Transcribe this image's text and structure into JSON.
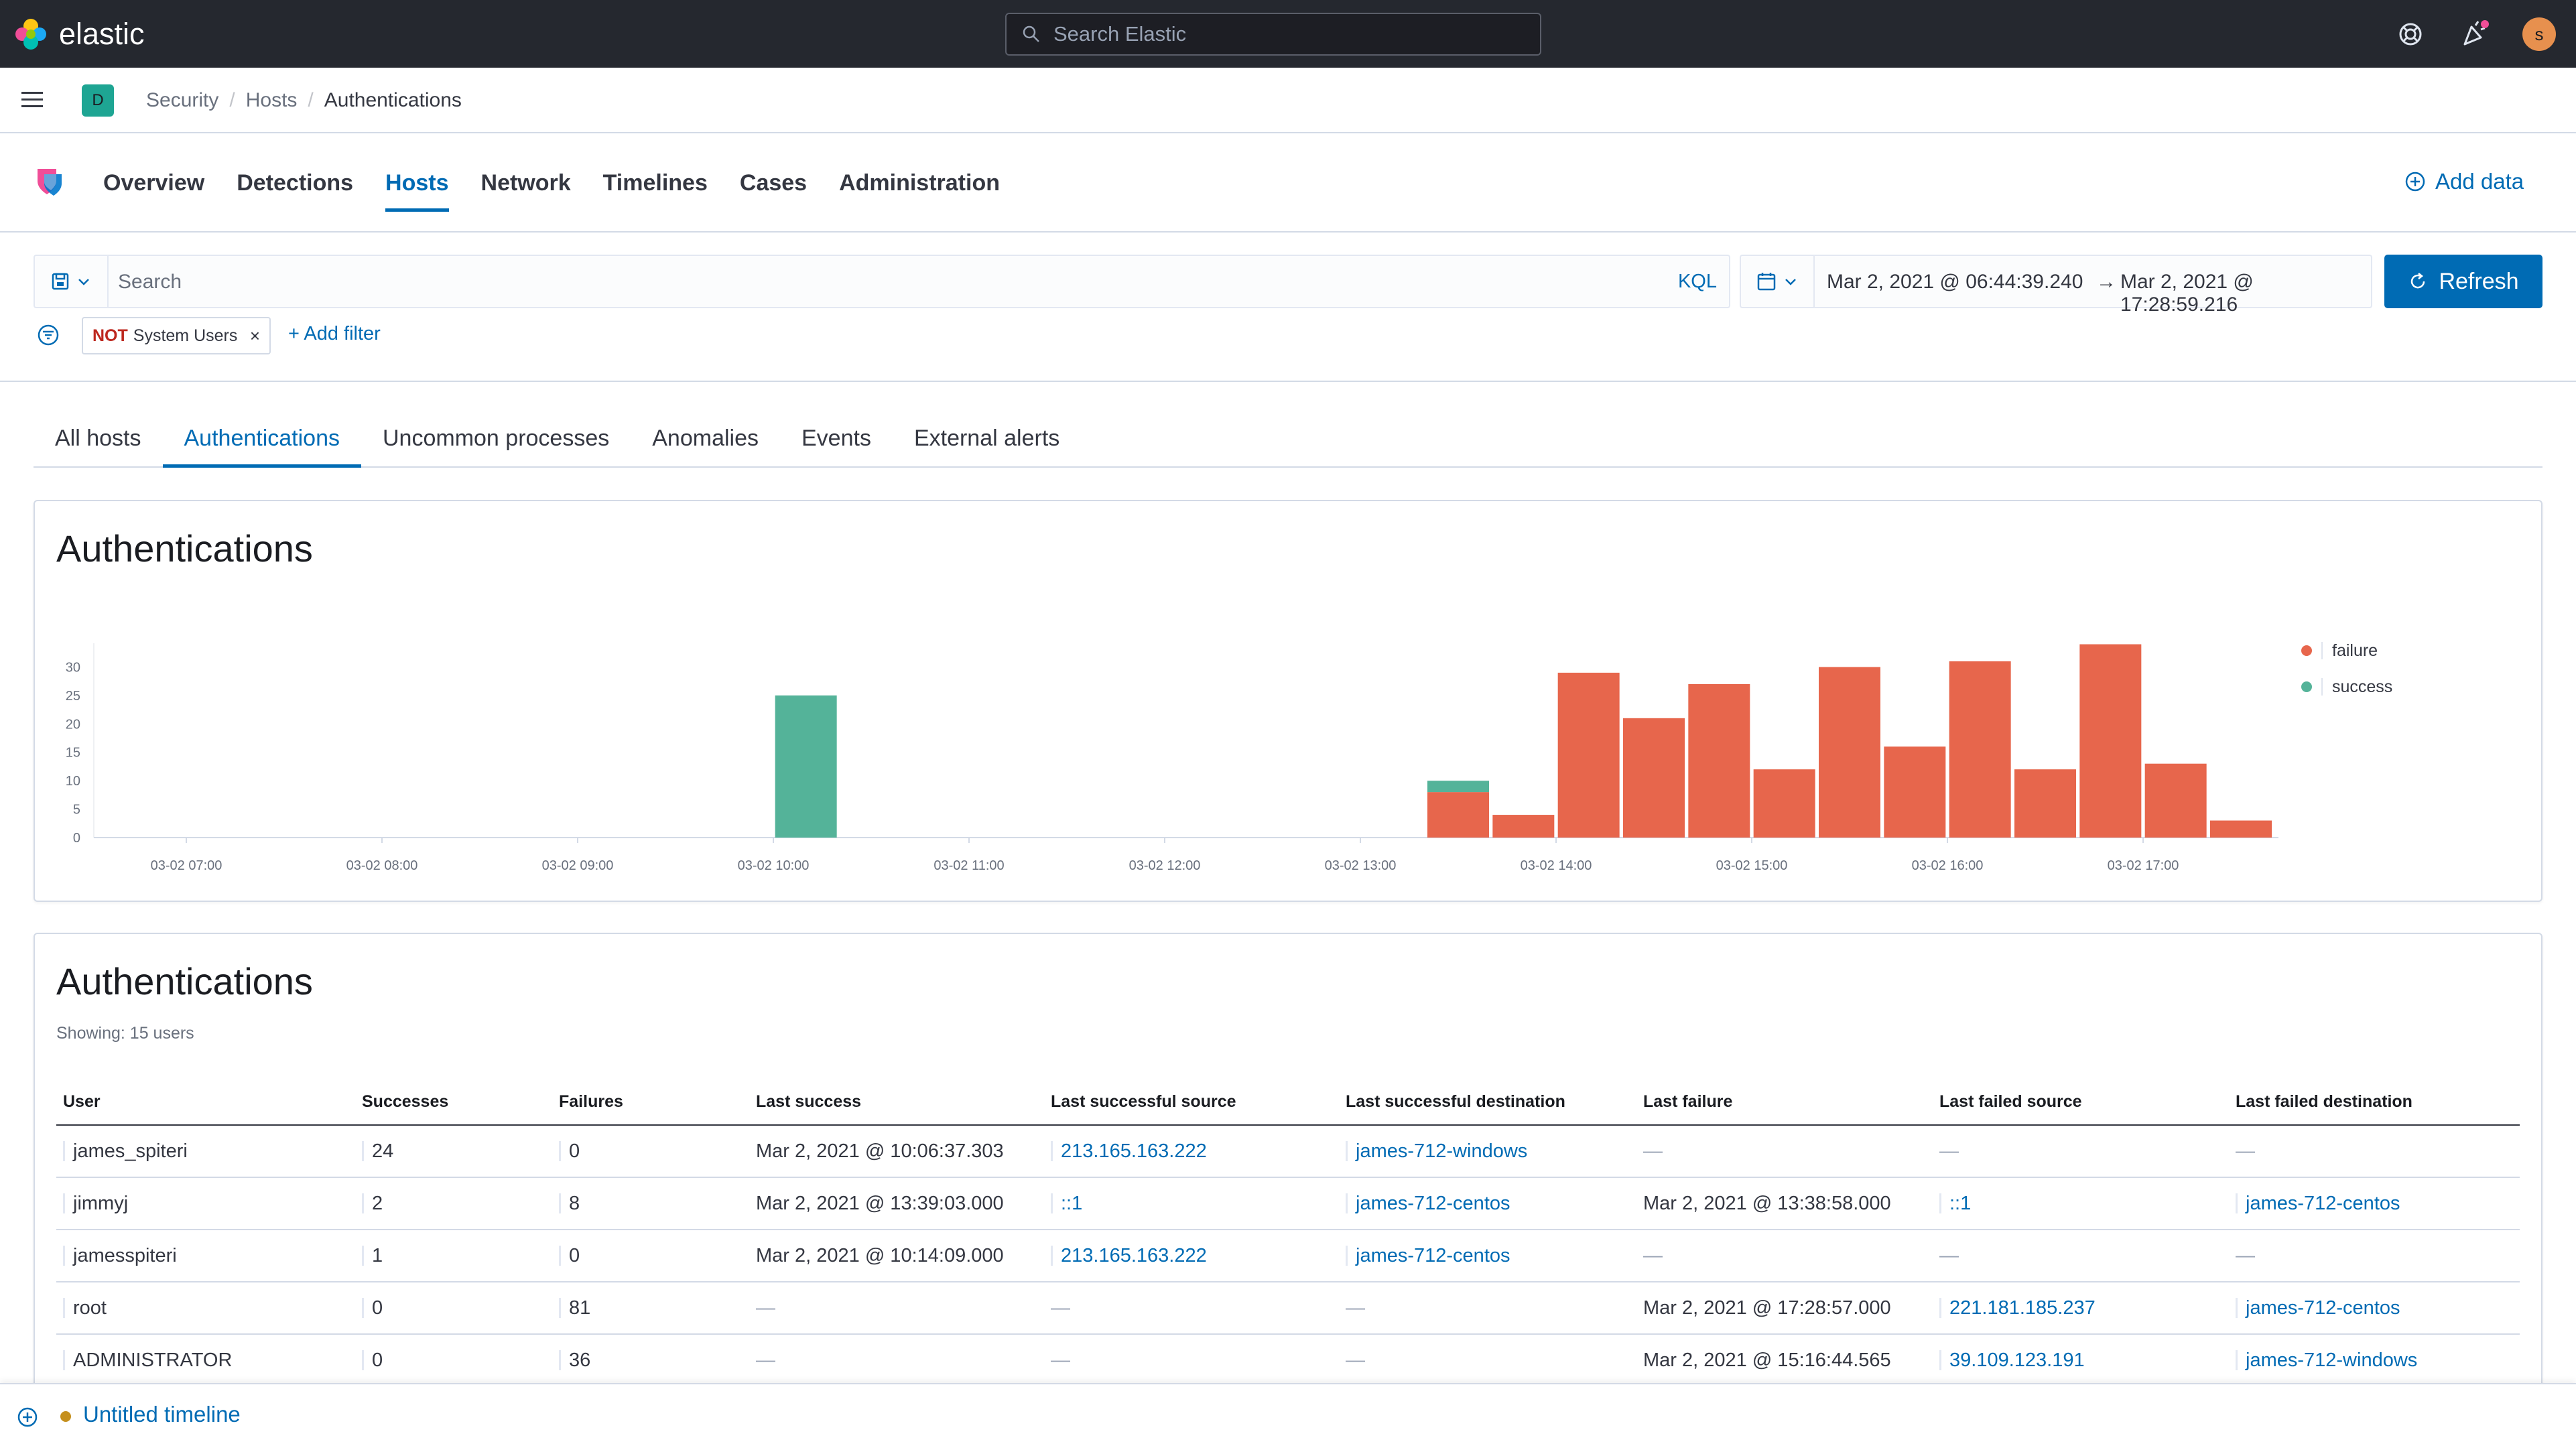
{
  "topbar": {
    "brand": "elastic",
    "search_placeholder": "Search Elastic",
    "avatar_initial": "s"
  },
  "breadcrumb": {
    "space_initial": "D",
    "items": [
      "Security",
      "Hosts",
      "Authentications"
    ]
  },
  "nav": {
    "tabs": [
      "Overview",
      "Detections",
      "Hosts",
      "Network",
      "Timelines",
      "Cases",
      "Administration"
    ],
    "active": "Hosts",
    "add_data": "Add data"
  },
  "query": {
    "placeholder": "Search",
    "language": "KQL",
    "start": "Mar 2, 2021 @ 06:44:39.240",
    "arrow": "→",
    "end": "Mar 2, 2021 @ 17:28:59.216",
    "refresh": "Refresh"
  },
  "filters": {
    "pill_not": "NOT",
    "pill_label": "System Users",
    "pill_close": "×",
    "add_filter": "+ Add filter"
  },
  "subtabs": {
    "items": [
      "All hosts",
      "Authentications",
      "Uncommon processes",
      "Anomalies",
      "Events",
      "External alerts"
    ],
    "active": "Authentications"
  },
  "colors": {
    "failure": "#e7664c",
    "success": "#54b399",
    "link": "#006bb4"
  },
  "chart_panel": {
    "title": "Authentications"
  },
  "chart_data": {
    "type": "bar",
    "stacked": true,
    "legend_position": "top-right",
    "ylim": [
      0,
      33
    ],
    "y_ticks": [
      0,
      5,
      10,
      15,
      20,
      25,
      30
    ],
    "x_tick_labels": [
      "03-02 07:00",
      "03-02 08:00",
      "03-02 09:00",
      "03-02 10:00",
      "03-02 11:00",
      "03-02 12:00",
      "03-02 13:00",
      "03-02 14:00",
      "03-02 15:00",
      "03-02 16:00",
      "03-02 17:00"
    ],
    "series": [
      {
        "name": "failure",
        "points": [
          [
            "03-02 13:30",
            8
          ],
          [
            "03-02 13:50",
            4
          ],
          [
            "03-02 14:10",
            29
          ],
          [
            "03-02 14:30",
            21
          ],
          [
            "03-02 14:50",
            27
          ],
          [
            "03-02 15:10",
            12
          ],
          [
            "03-02 15:30",
            30
          ],
          [
            "03-02 15:50",
            16
          ],
          [
            "03-02 16:10",
            31
          ],
          [
            "03-02 16:30",
            12
          ],
          [
            "03-02 16:50",
            34
          ],
          [
            "03-02 17:10",
            13
          ],
          [
            "03-02 17:30",
            3
          ]
        ]
      },
      {
        "name": "success",
        "points": [
          [
            "03-02 10:10",
            25
          ],
          [
            "03-02 13:30",
            2
          ]
        ]
      }
    ]
  },
  "table_panel": {
    "title": "Authentications",
    "showing": "Showing: 15 users",
    "columns": [
      "User",
      "Successes",
      "Failures",
      "Last success",
      "Last successful source",
      "Last successful destination",
      "Last failure",
      "Last failed source",
      "Last failed destination"
    ],
    "rows": [
      [
        "james_spiteri",
        "24",
        "0",
        "Mar 2, 2021 @ 10:06:37.303",
        "213.165.163.222",
        "james-712-windows",
        "—",
        "—",
        "—"
      ],
      [
        "jimmyj",
        "2",
        "8",
        "Mar 2, 2021 @ 13:39:03.000",
        "::1",
        "james-712-centos",
        "Mar 2, 2021 @ 13:38:58.000",
        "::1",
        "james-712-centos"
      ],
      [
        "jamesspiteri",
        "1",
        "0",
        "Mar 2, 2021 @ 10:14:09.000",
        "213.165.163.222",
        "james-712-centos",
        "—",
        "—",
        "—"
      ],
      [
        "root",
        "0",
        "81",
        "—",
        "—",
        "—",
        "Mar 2, 2021 @ 17:28:57.000",
        "221.181.185.237",
        "james-712-centos"
      ],
      [
        "ADMINISTRATOR",
        "0",
        "36",
        "—",
        "—",
        "—",
        "Mar 2, 2021 @ 15:16:44.565",
        "39.109.123.191",
        "james-712-windows"
      ]
    ]
  },
  "timeline": {
    "title": "Untitled timeline"
  },
  "icons": {
    "help": "help-icon",
    "newsfeed": "newsfeed-icon",
    "menu": "menu-icon",
    "calendar": "calendar-icon",
    "filter": "filter-icon"
  }
}
